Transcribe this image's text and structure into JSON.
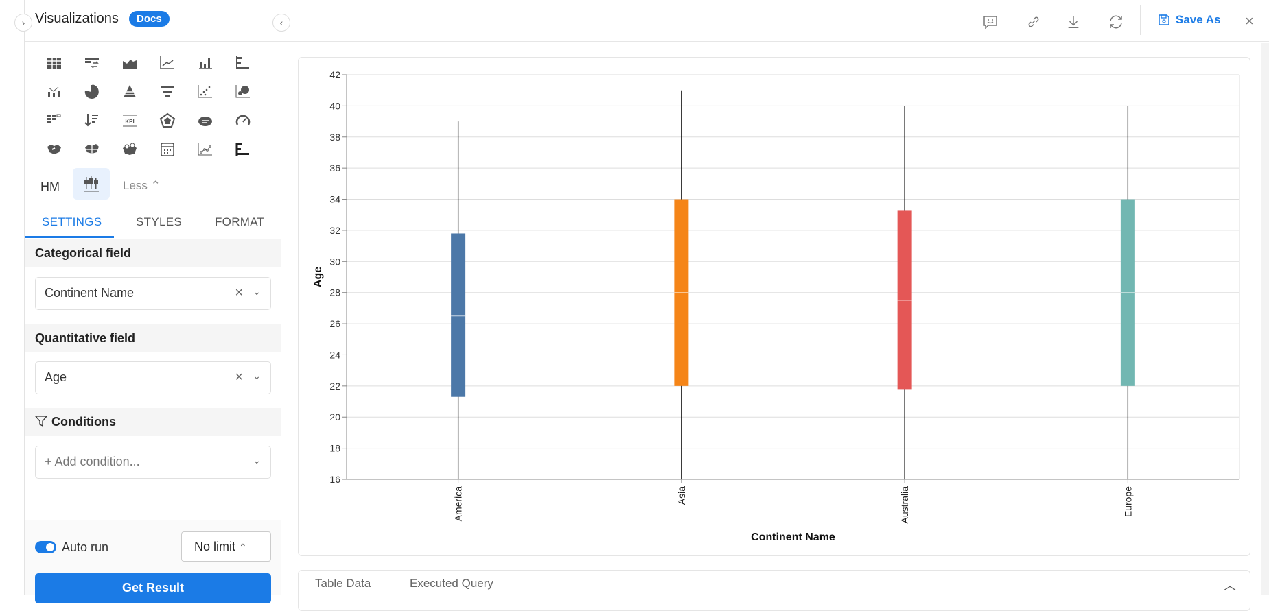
{
  "sidebar": {
    "title": "Visualizations",
    "docs_badge": "Docs",
    "viz_icons": [
      "table-icon",
      "pivot-table-icon",
      "area-chart-icon",
      "line-chart-icon",
      "bar-chart-icon",
      "horizontal-bar-icon",
      "combo-chart-icon",
      "pie-chart-icon",
      "pyramid-icon",
      "funnel-icon",
      "scatter-icon",
      "bubble-icon",
      "heatmap-grid-icon",
      "sorted-list-icon",
      "kpi-icon",
      "radar-icon",
      "word-cloud-icon",
      "gauge-icon",
      "choropleth-map-icon",
      "region-map-icon",
      "pin-map-icon",
      "calendar-icon",
      "line-points-icon",
      "stacked-horizontal-bar-icon"
    ],
    "hm_label": "HM",
    "less_label": "Less",
    "tabs": [
      "SETTINGS",
      "STYLES",
      "FORMAT"
    ],
    "categorical_label": "Categorical field",
    "categorical_value": "Continent Name",
    "quantitative_label": "Quantitative field",
    "quantitative_value": "Age",
    "conditions_label": "Conditions",
    "add_condition_placeholder": "+ Add condition...",
    "auto_run_label": "Auto run",
    "limit_value": "No limit",
    "get_result_label": "Get Result"
  },
  "toolbar": {
    "save_as_label": "Save As"
  },
  "bottom_tabs": [
    "Table Data",
    "Executed Query"
  ],
  "colors": {
    "accent": "#1b7be6"
  },
  "chart_data": {
    "type": "boxplot",
    "xlabel": "Continent Name",
    "ylabel": "Age",
    "ylim": [
      16,
      42
    ],
    "yticks": [
      16,
      18,
      20,
      22,
      24,
      26,
      28,
      30,
      32,
      34,
      36,
      38,
      40,
      42
    ],
    "grid": true,
    "categories": [
      "America",
      "Asia",
      "Australia",
      "Europe"
    ],
    "series": [
      {
        "name": "America",
        "min": 16,
        "q1": 21.3,
        "median": 26.5,
        "q3": 31.8,
        "max": 39,
        "color": "#4c78a8"
      },
      {
        "name": "Asia",
        "min": 16,
        "q1": 22,
        "median": 28,
        "q3": 34,
        "max": 41,
        "color": "#f58518"
      },
      {
        "name": "Australia",
        "min": 16,
        "q1": 21.8,
        "median": 27.5,
        "q3": 33.3,
        "max": 40,
        "color": "#e45756"
      },
      {
        "name": "Europe",
        "min": 16,
        "q1": 22,
        "median": 28,
        "q3": 34,
        "max": 40,
        "color": "#72b7b2"
      }
    ]
  }
}
